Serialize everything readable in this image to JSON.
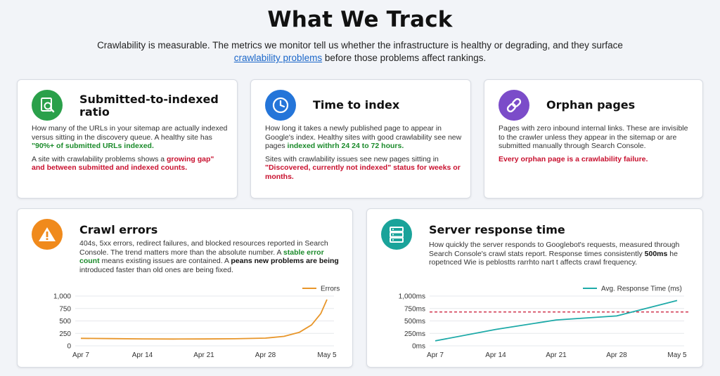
{
  "page": {
    "title": "What We Track",
    "intro_text": "Crawlability is measurable. The metrics we monitor tell us whether the infrastructure is healthy or degrading, and they surface",
    "intro_link": "crawlability problems",
    "intro_end": " before those problems affect rankings."
  },
  "colors": {
    "green": "#2aa04a",
    "blue": "#2475d9",
    "purple": "#7b4cc9",
    "orange": "#f08a1c",
    "teal": "#1aa39a",
    "errors_line": "#e8962a",
    "response_line": "#1eaaa8",
    "threshold": "#c8102e"
  },
  "cards": {
    "submitted": {
      "icon": "search-document-icon",
      "title_line1": "Submitted-to-indexed",
      "title_line2": "ratio",
      "p1_a": "How many of the URLs in your sitemap are actually indexed versus sitting in the discovery queue. A healthy site has ",
      "p1_green": "\"90%+ of submitted URLs indexed.",
      "p2_a": "A site with crawlability problems shows a ",
      "p2_red1": "growing gap\"",
      "p2_b": " and ",
      "p2_red2": "between submitted and indexed counts."
    },
    "time": {
      "icon": "clock-icon",
      "title": "Time to index",
      "p1_a": "How long it takes a newly published page to appear in Google's index. Healthy sites with good crawlability see new pages ",
      "p1_green": "indexed withrh 24 24 to 72 hours.",
      "p2_a": "Sites with crawlability issues see new pages sitting in ",
      "p2_red": "\"Discovered, currently not indexed\" status for weeks or months."
    },
    "orphan": {
      "icon": "link-icon",
      "title": "Orphan pages",
      "p1": "Pages with zero inbound internal links. These are invisible to the crawler unless they appear in the sitemap or are submitted manually through Search Console.",
      "p2_red": "Every orphan page is a crawlability failure."
    },
    "crawl": {
      "icon": "warning-icon",
      "title": "Crawl errors",
      "p1": "404s, 5xx errors, redirect failures, and blocked resources reported in Search Console. The trend matters more than the absolute number. A ",
      "p1_green": "stable error count",
      "p1_b": " means existing issues are contained. A ",
      "p1_bold": "peans new problems are being",
      "p1_c": " introduced faster than old ones are being fixed."
    },
    "server": {
      "icon": "server-icon",
      "title": "Server response time",
      "p1_a": "How quickly the server responds to Googlebot's requests, measured through Search Console's crawl stats report. Response times consistently ",
      "p1_bold": "500ms",
      "p1_b": " he ropetnced Wie is peblostts rarrhto nart t affects crawl frequency."
    }
  },
  "chart_data": [
    {
      "type": "line",
      "x": [
        "Apr 7",
        "Apr 14",
        "Apr 21",
        "Apr 28",
        "May 5"
      ],
      "series": [
        {
          "name": "Errors",
          "x": [
            0,
            0.5,
            1,
            1.5,
            2,
            2.5,
            3,
            3.3,
            3.55,
            3.75,
            3.9,
            4.0
          ],
          "values": [
            150,
            145,
            140,
            137,
            138,
            142,
            155,
            190,
            270,
            420,
            650,
            930
          ]
        }
      ],
      "yticks": [
        "0",
        "250",
        "500",
        "750",
        "1,000"
      ],
      "ylim": [
        0,
        1000
      ],
      "legend": "top-right"
    },
    {
      "type": "line",
      "x": [
        "Apr 7",
        "Apr 14",
        "Apr 21",
        "Apr 28",
        "May 5"
      ],
      "series": [
        {
          "name": "Avg. Response Time (ms)",
          "x": [
            0,
            1,
            2,
            3,
            4
          ],
          "values": [
            100,
            330,
            520,
            600,
            910
          ]
        }
      ],
      "threshold": 680,
      "yticks": [
        "0ms",
        "250ms",
        "500ms",
        "750ms",
        "1,000ms"
      ],
      "ylim": [
        0,
        1000
      ],
      "legend": "top-right"
    }
  ]
}
